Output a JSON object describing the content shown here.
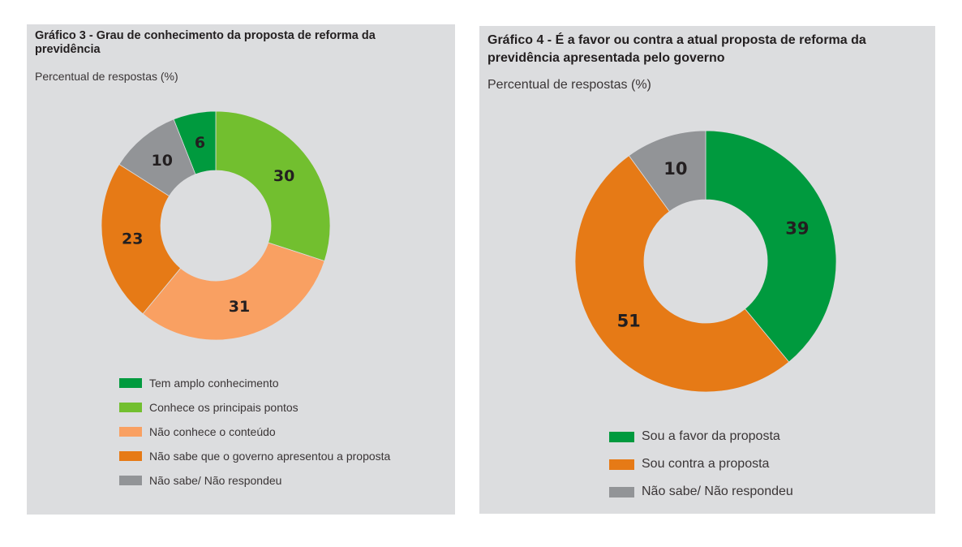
{
  "chart_data": [
    {
      "type": "pie",
      "variant": "donut",
      "title": "Gráfico 3 - Grau de conhecimento da proposta de reforma da previdência",
      "subtitle": "Percentual de respostas (%)",
      "start": "12 o'clock",
      "direction": "clockwise",
      "slices": [
        {
          "label": "Conhece os principais pontos",
          "value": 30,
          "color": "#72bf2f"
        },
        {
          "label": "Não conhece o conteúdo",
          "value": 31,
          "color": "#f9a062"
        },
        {
          "label": "Não sabe que o governo apresentou a proposta",
          "value": 23,
          "color": "#e67a16"
        },
        {
          "label": "Não sabe/ Não respondeu",
          "value": 10,
          "color": "#929497"
        },
        {
          "label": "Tem amplo conhecimento",
          "value": 6,
          "color": "#009a3e"
        }
      ],
      "legend": [
        {
          "label": "Tem amplo conhecimento",
          "color": "#009a3e"
        },
        {
          "label": "Conhece os principais pontos",
          "color": "#72bf2f"
        },
        {
          "label": "Não conhece o conteúdo",
          "color": "#f9a062"
        },
        {
          "label": "Não sabe que o governo apresentou a proposta",
          "color": "#e67a16"
        },
        {
          "label": "Não sabe/ Não respondeu",
          "color": "#929497"
        }
      ],
      "legend_position": "bottom"
    },
    {
      "type": "pie",
      "variant": "donut",
      "title": "Gráfico 4 - É a favor ou contra a atual proposta de reforma da previdência apresentada pelo governo",
      "subtitle": "Percentual de respostas (%)",
      "start": "12 o'clock",
      "direction": "clockwise",
      "slices": [
        {
          "label": "Sou a favor da proposta",
          "value": 39,
          "color": "#009a3e"
        },
        {
          "label": "Sou contra a proposta",
          "value": 51,
          "color": "#e67a16"
        },
        {
          "label": "Não sabe/ Não respondeu",
          "value": 10,
          "color": "#929497"
        }
      ],
      "legend": [
        {
          "label": "Sou a favor da proposta",
          "color": "#009a3e"
        },
        {
          "label": "Sou contra a proposta",
          "color": "#e67a16"
        },
        {
          "label": "Não sabe/ Não respondeu",
          "color": "#929497"
        }
      ],
      "legend_position": "bottom"
    }
  ],
  "colors": {
    "panel_background": "#dcdddf",
    "text": "#231f20"
  }
}
